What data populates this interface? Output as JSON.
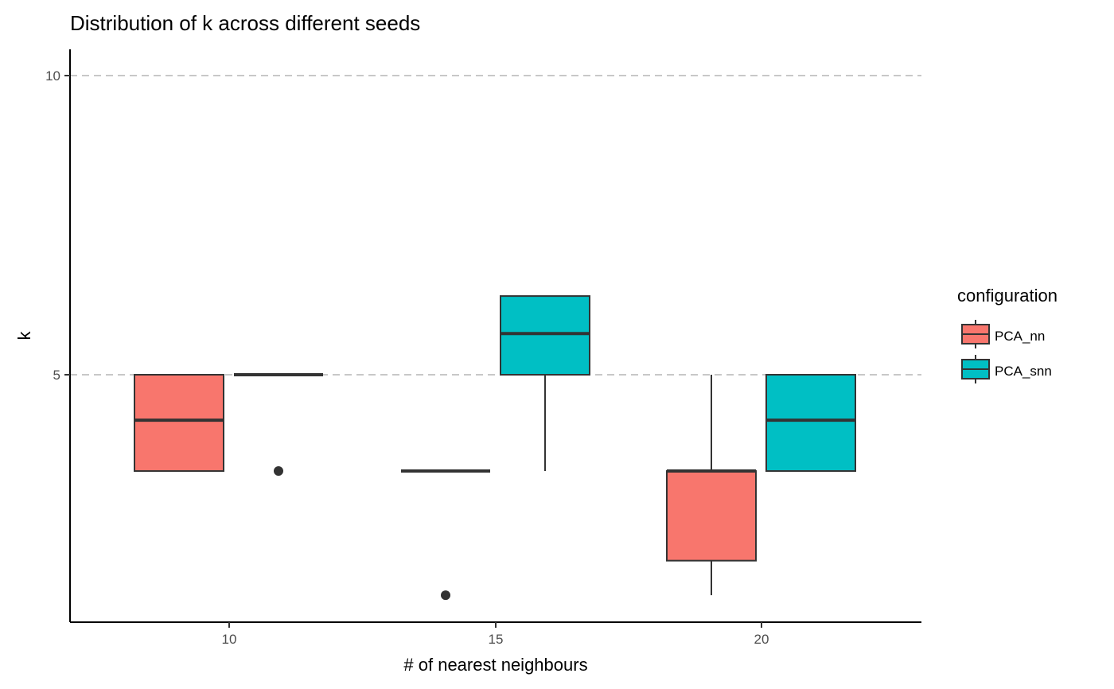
{
  "chart_data": {
    "type": "boxplot",
    "title": "Distribution of k across different seeds",
    "xlabel": "# of nearest neighbours",
    "ylabel": "k",
    "y_scale": "log10",
    "ylim": [
      2.9,
      10.5
    ],
    "x_ticks": [
      "10",
      "15",
      "20"
    ],
    "y_ticks": [
      5,
      10
    ],
    "y_tick_labels": [
      "5",
      "10"
    ],
    "grid": "dashed horizontal major lines",
    "legend": {
      "title": "configuration",
      "placement": "right",
      "entries": [
        "PCA_nn",
        "PCA_snn"
      ]
    },
    "colors": {
      "PCA_nn": "#F8766D",
      "PCA_snn": "#00BFC4"
    },
    "series": [
      {
        "name": "PCA_nn",
        "boxes": [
          {
            "x": "10",
            "lower_whisker": 4,
            "q1": 4,
            "median": 4.5,
            "q3": 5,
            "upper_whisker": 5,
            "outliers": []
          },
          {
            "x": "15",
            "lower_whisker": 4,
            "q1": 4,
            "median": 4,
            "q3": 4,
            "upper_whisker": 4,
            "outliers": [
              3
            ]
          },
          {
            "x": "20",
            "lower_whisker": 3,
            "q1": 3.25,
            "median": 4,
            "q3": 4,
            "upper_whisker": 5,
            "outliers": []
          }
        ]
      },
      {
        "name": "PCA_snn",
        "boxes": [
          {
            "x": "10",
            "lower_whisker": 5,
            "q1": 5,
            "median": 5,
            "q3": 5,
            "upper_whisker": 5,
            "outliers": [
              4
            ]
          },
          {
            "x": "15",
            "lower_whisker": 4,
            "q1": 5,
            "median": 5.5,
            "q3": 6,
            "upper_whisker": 6,
            "outliers": []
          },
          {
            "x": "20",
            "lower_whisker": 4,
            "q1": 4,
            "median": 4.5,
            "q3": 5,
            "upper_whisker": 5,
            "outliers": []
          }
        ]
      }
    ]
  }
}
